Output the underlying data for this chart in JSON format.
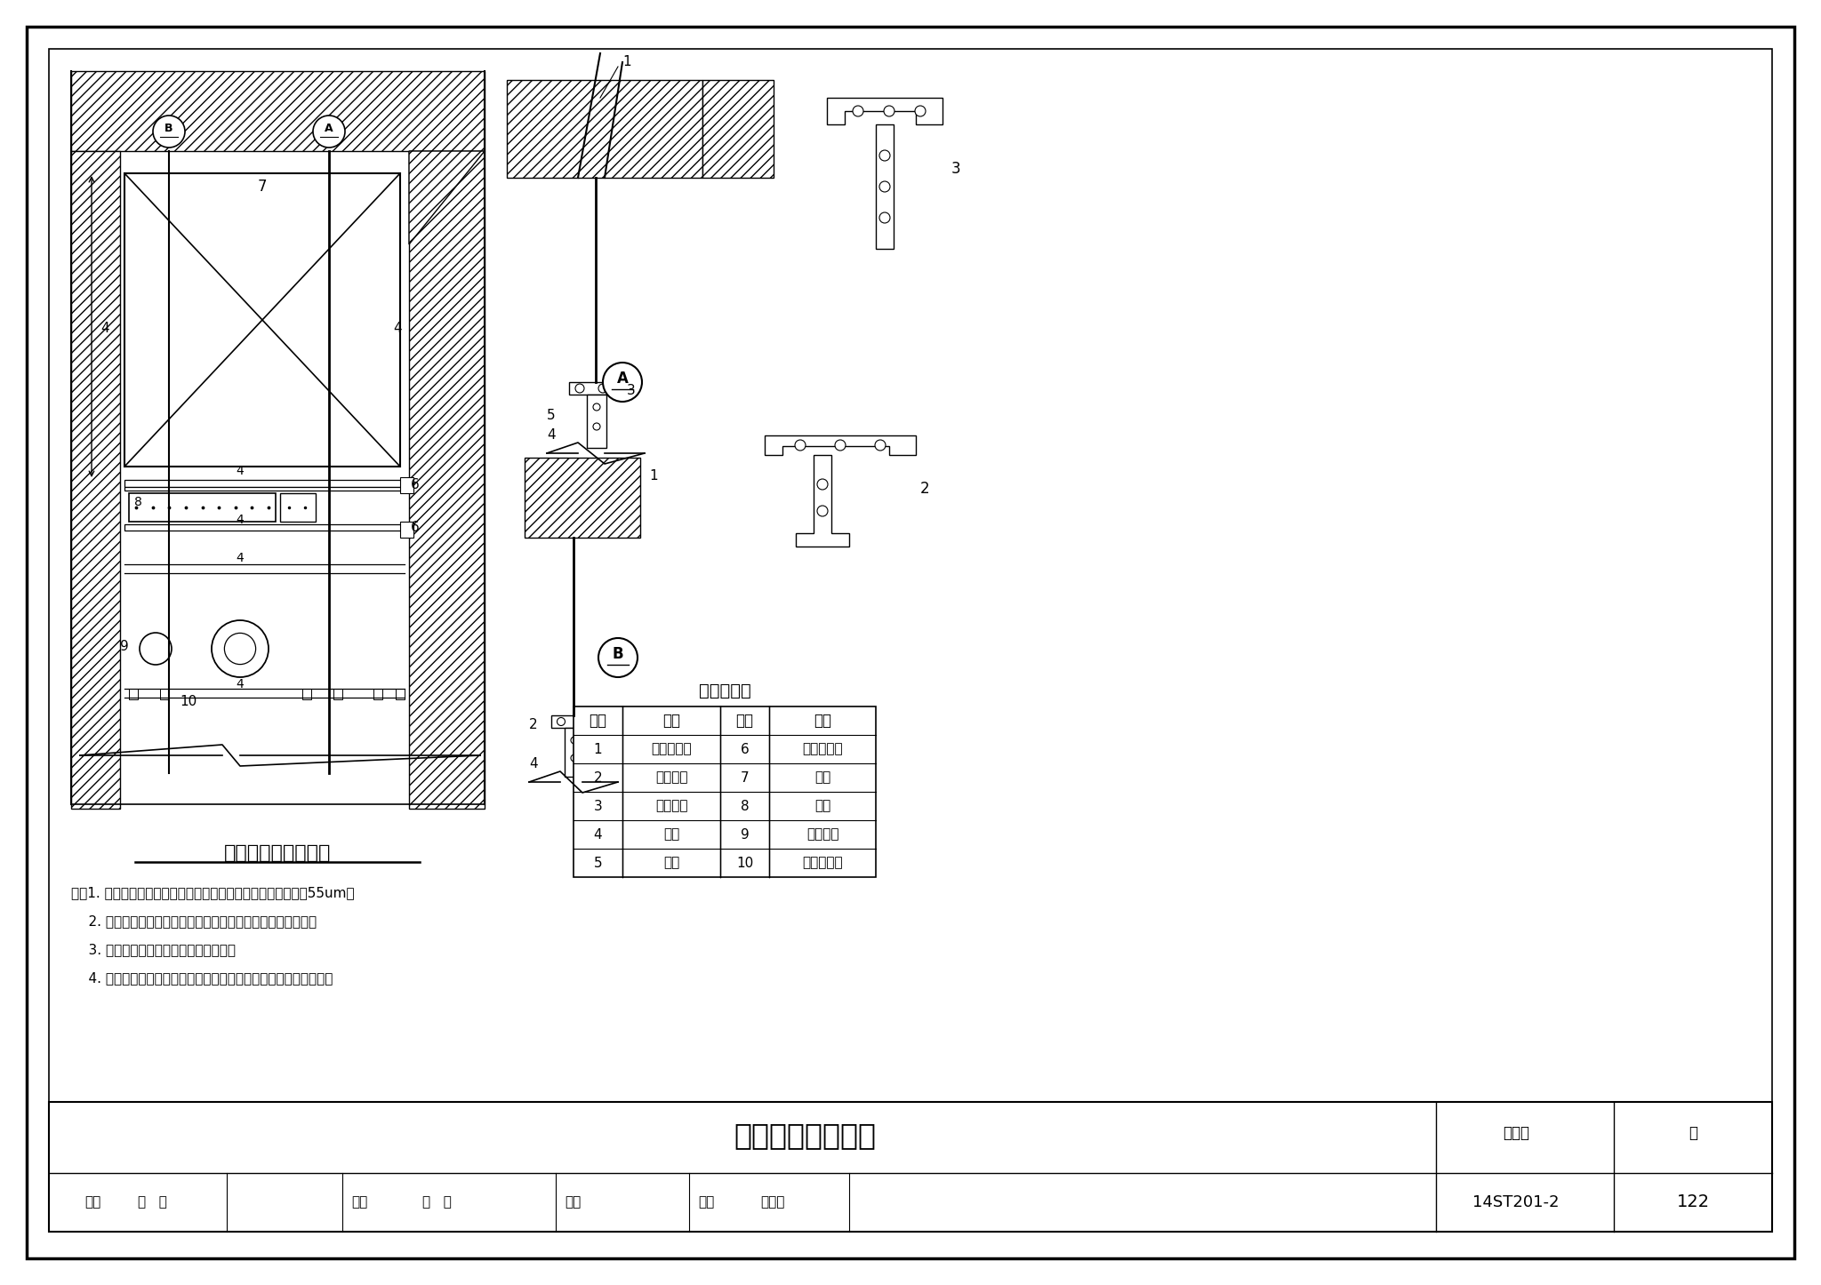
{
  "title": "综合管线敷设剖面图",
  "figure_label": "综合管线敷设剖面",
  "atlas_no": "14ST201-2",
  "page": "122",
  "notes": [
    "注：1. 支吊架主要构件表面处理使用热浸镀锌，锌层厚度不小于55um。",
    "    2. 槽钢、螺杆等长度、位置均可调整，但不应超出可调范围。",
    "    3. 风管、桥架与槽钢连接处加槽钢封。",
    "    4. 接地扁钢沿吊架底部通长布置，使用六角螺栓和槽钢螺母安装。"
  ],
  "table_title": "名称对照表",
  "table_data": [
    [
      "编号",
      "名称",
      "编号",
      "名称"
    ],
    [
      "1",
      "后切底锚栓",
      "6",
      "直角连接件"
    ],
    [
      "2",
      "固定底座",
      "7",
      "风管"
    ],
    [
      "3",
      "万向底座",
      "8",
      "桥架"
    ],
    [
      "4",
      "槽钢",
      "9",
      "保温管卡"
    ],
    [
      "5",
      "螺栓",
      "10",
      "非保温管卡"
    ]
  ],
  "bg_color": "#ffffff"
}
